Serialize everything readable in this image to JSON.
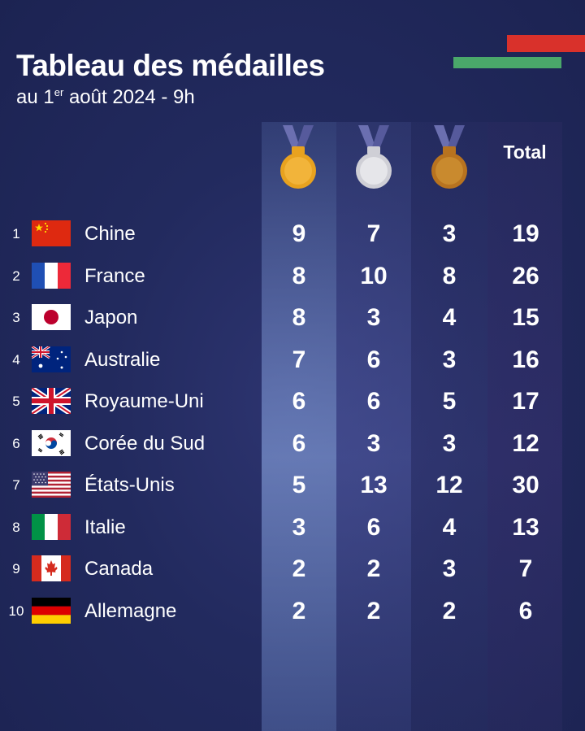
{
  "header": {
    "title": "Tableau des médailles",
    "subtitle_prefix": "au 1",
    "subtitle_sup": "er",
    "subtitle_suffix": " août 2024 - 9h"
  },
  "columns": {
    "gold_icon": "gold-medal-icon",
    "silver_icon": "silver-medal-icon",
    "bronze_icon": "bronze-medal-icon",
    "total_label": "Total"
  },
  "colors": {
    "background": "#1f2657",
    "gold": "#e8a21f",
    "silver": "#d9d9de",
    "bronze": "#c07d24",
    "stripe_red": "#d9312b",
    "stripe_green": "#4aa86a"
  },
  "rows": [
    {
      "rank": "1",
      "flag": "china-flag-icon",
      "country": "Chine",
      "gold": "9",
      "silver": "7",
      "bronze": "3",
      "total": "19"
    },
    {
      "rank": "2",
      "flag": "france-flag-icon",
      "country": "France",
      "gold": "8",
      "silver": "10",
      "bronze": "8",
      "total": "26"
    },
    {
      "rank": "3",
      "flag": "japan-flag-icon",
      "country": "Japon",
      "gold": "8",
      "silver": "3",
      "bronze": "4",
      "total": "15"
    },
    {
      "rank": "4",
      "flag": "australia-flag-icon",
      "country": "Australie",
      "gold": "7",
      "silver": "6",
      "bronze": "3",
      "total": "16"
    },
    {
      "rank": "5",
      "flag": "uk-flag-icon",
      "country": "Royaume-Uni",
      "gold": "6",
      "silver": "6",
      "bronze": "5",
      "total": "17"
    },
    {
      "rank": "6",
      "flag": "south-korea-flag-icon",
      "country": "Corée du Sud",
      "gold": "6",
      "silver": "3",
      "bronze": "3",
      "total": "12"
    },
    {
      "rank": "7",
      "flag": "usa-flag-icon",
      "country": "États-Unis",
      "gold": "5",
      "silver": "13",
      "bronze": "12",
      "total": "30"
    },
    {
      "rank": "8",
      "flag": "italy-flag-icon",
      "country": "Italie",
      "gold": "3",
      "silver": "6",
      "bronze": "4",
      "total": "13"
    },
    {
      "rank": "9",
      "flag": "canada-flag-icon",
      "country": "Canada",
      "gold": "2",
      "silver": "2",
      "bronze": "3",
      "total": "7"
    },
    {
      "rank": "10",
      "flag": "germany-flag-icon",
      "country": "Allemagne",
      "gold": "2",
      "silver": "2",
      "bronze": "2",
      "total": "6"
    }
  ]
}
